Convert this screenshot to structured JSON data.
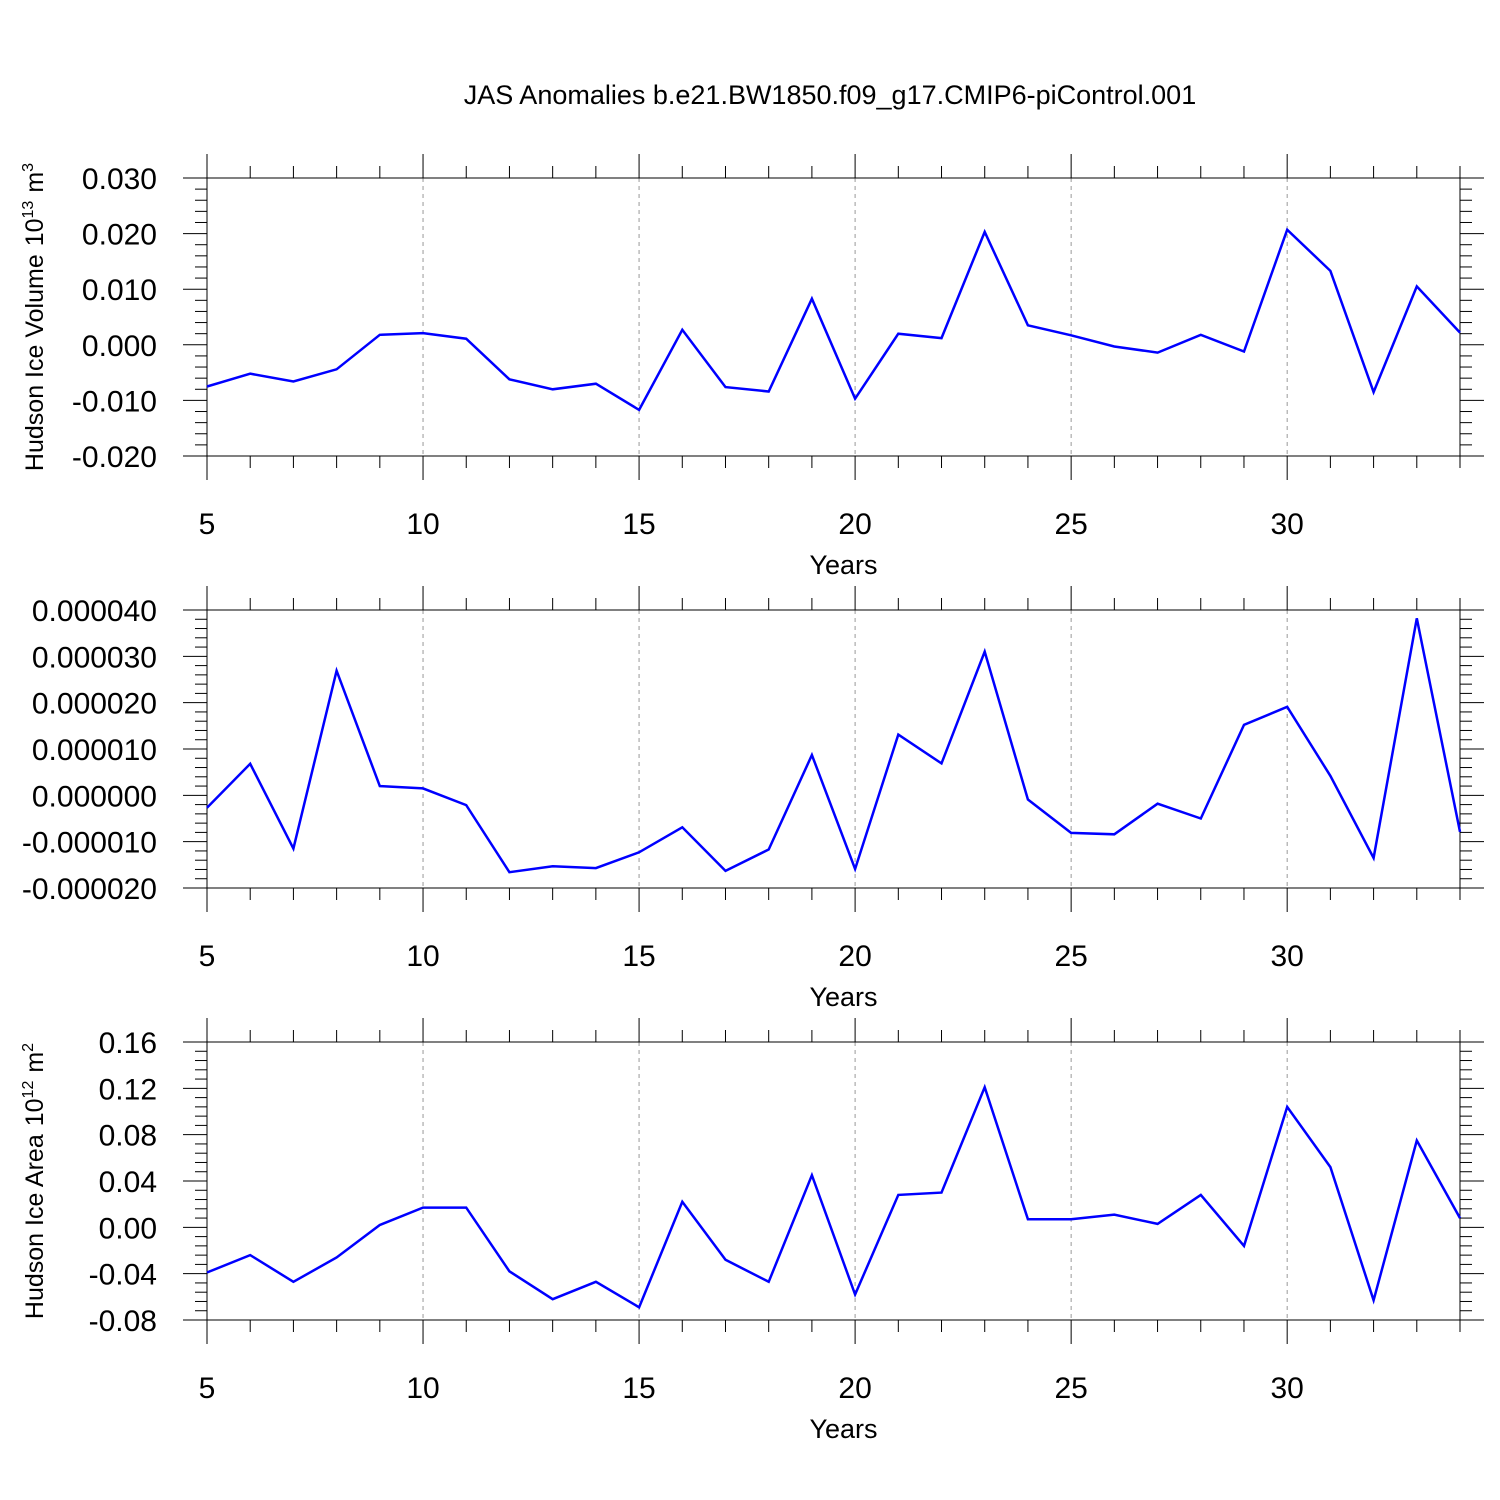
{
  "title": "JAS Anomalies b.e21.BW1850.f09_g17.CMIP6-piControl.001",
  "chart_data": [
    {
      "type": "line",
      "xlabel": "Years",
      "ylabel": "Hudson Ice Volume",
      "ylabel_unit_base": "10",
      "ylabel_unit_exp": "13",
      "ylabel_unit_suffix": "m",
      "ylabel_unit_suffix_exp": "3",
      "xlim": [
        5,
        34
      ],
      "ylim": [
        -0.02,
        0.03
      ],
      "xticks": [
        5,
        10,
        15,
        20,
        25,
        30
      ],
      "xtick_labels": [
        "5",
        "10",
        "15",
        "20",
        "25",
        "30"
      ],
      "yticks": [
        -0.02,
        -0.01,
        0.0,
        0.01,
        0.02,
        0.03
      ],
      "ytick_labels": [
        "-0.020",
        "-0.010",
        "0.000",
        "0.010",
        "0.020",
        "0.030"
      ],
      "grid": "vertical dashed at major x ticks",
      "line_color": "#0000ff",
      "x": [
        5,
        6,
        7,
        8,
        9,
        10,
        11,
        12,
        13,
        14,
        15,
        16,
        17,
        18,
        19,
        20,
        21,
        22,
        23,
        24,
        25,
        26,
        27,
        28,
        29,
        30,
        31,
        32,
        33,
        34
      ],
      "y": [
        -0.0075,
        -0.0052,
        -0.0066,
        -0.0044,
        0.0018,
        0.0021,
        0.0011,
        -0.0062,
        -0.008,
        -0.007,
        -0.0117,
        0.0027,
        -0.0076,
        -0.0084,
        0.0083,
        -0.0097,
        0.002,
        0.0012,
        0.0203,
        0.0035,
        0.0017,
        -0.0003,
        -0.0014,
        0.0018,
        -0.0012,
        0.0207,
        0.0133,
        -0.0085,
        0.0105,
        0.0022
      ]
    },
    {
      "type": "line",
      "xlabel": "Years",
      "ylabel": "",
      "xlim": [
        5,
        34
      ],
      "ylim": [
        -2e-05,
        4e-05
      ],
      "xticks": [
        5,
        10,
        15,
        20,
        25,
        30
      ],
      "xtick_labels": [
        "5",
        "10",
        "15",
        "20",
        "25",
        "30"
      ],
      "yticks": [
        -2e-05,
        -1e-05,
        0.0,
        1e-05,
        2e-05,
        3e-05,
        4e-05
      ],
      "ytick_labels": [
        "-0.000020",
        "-0.000010",
        "0.000000",
        "0.000010",
        "0.000020",
        "0.000030",
        "0.000040"
      ],
      "grid": "vertical dashed at major x ticks",
      "line_color": "#0000ff",
      "x": [
        5,
        6,
        7,
        8,
        9,
        10,
        11,
        12,
        13,
        14,
        15,
        16,
        17,
        18,
        19,
        20,
        21,
        22,
        23,
        24,
        25,
        26,
        27,
        28,
        29,
        30,
        31,
        32,
        33,
        34
      ],
      "y": [
        -2.7e-06,
        6.8e-06,
        -1.15e-05,
        2.69e-05,
        2e-06,
        1.5e-06,
        -2.1e-06,
        -1.66e-05,
        -1.53e-05,
        -1.57e-05,
        -1.23e-05,
        -6.9e-06,
        -1.63e-05,
        -1.17e-05,
        8.7e-06,
        -1.59e-05,
        1.31e-05,
        6.9e-06,
        3.1e-05,
        -9e-07,
        -8.1e-06,
        -8.4e-06,
        -1.8e-06,
        -5e-06,
        1.52e-05,
        1.91e-05,
        4.2e-06,
        -1.35e-05,
        3.82e-05,
        -7.9e-06
      ]
    },
    {
      "type": "line",
      "xlabel": "Years",
      "ylabel": "Hudson Ice Area",
      "ylabel_unit_base": "10",
      "ylabel_unit_exp": "12",
      "ylabel_unit_suffix": "m",
      "ylabel_unit_suffix_exp": "2",
      "xlim": [
        5,
        34
      ],
      "ylim": [
        -0.08,
        0.16
      ],
      "xticks": [
        5,
        10,
        15,
        20,
        25,
        30
      ],
      "xtick_labels": [
        "5",
        "10",
        "15",
        "20",
        "25",
        "30"
      ],
      "yticks": [
        -0.08,
        -0.04,
        0.0,
        0.04,
        0.08,
        0.12,
        0.16
      ],
      "ytick_labels": [
        "-0.08",
        "-0.04",
        "0.00",
        "0.04",
        "0.08",
        "0.12",
        "0.16"
      ],
      "grid": "vertical dashed at major x ticks",
      "line_color": "#0000ff",
      "x": [
        5,
        6,
        7,
        8,
        9,
        10,
        11,
        12,
        13,
        14,
        15,
        16,
        17,
        18,
        19,
        20,
        21,
        22,
        23,
        24,
        25,
        26,
        27,
        28,
        29,
        30,
        31,
        32,
        33,
        34
      ],
      "y": [
        -0.039,
        -0.024,
        -0.047,
        -0.026,
        0.002,
        0.017,
        0.017,
        -0.038,
        -0.062,
        -0.047,
        -0.069,
        0.022,
        -0.028,
        -0.047,
        0.045,
        -0.058,
        0.028,
        0.03,
        0.121,
        0.007,
        0.007,
        0.011,
        0.003,
        0.028,
        -0.016,
        0.104,
        0.052,
        -0.063,
        0.075,
        0.008
      ]
    }
  ]
}
